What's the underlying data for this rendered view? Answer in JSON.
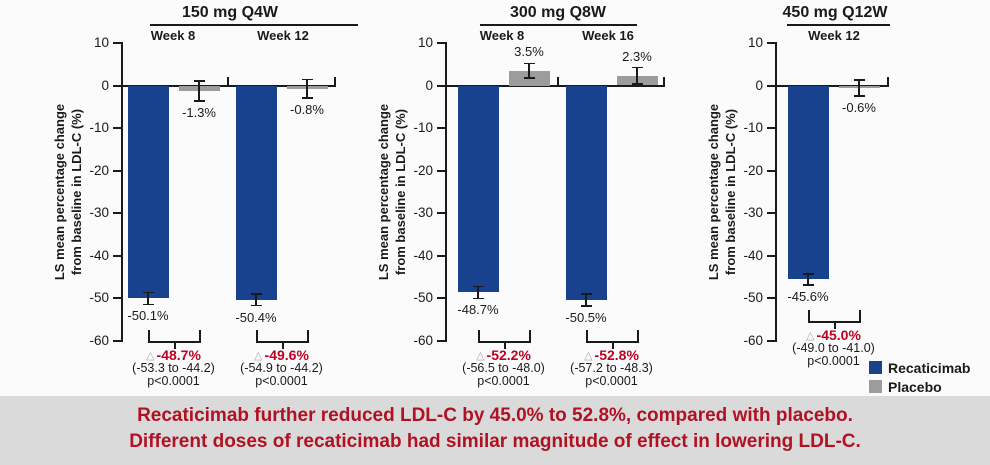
{
  "colors": {
    "recaticimab": "#18428e",
    "placebo": "#9c9c9c",
    "axis": "#1a1a1a",
    "delta_red": "#c00021",
    "triangle_gray": "#a9a9a9",
    "caption_red": "#b01224",
    "caption_bg": "#dadada",
    "chart_bg": "#fbfbfb"
  },
  "legend": {
    "items": [
      {
        "name": "recaticimab",
        "label": "Recaticimab",
        "color": "#18428e"
      },
      {
        "name": "placebo",
        "label": "Placebo",
        "color": "#9c9c9c"
      }
    ]
  },
  "caption": {
    "line1": "Recaticimab further reduced LDL-C by 45.0% to 52.8%, compared with placebo.",
    "line2": "Different doses of recaticimab had similar magnitude of effect in lowering LDL-C."
  },
  "chart_data": {
    "type": "bar",
    "ylabel": "LS mean percentage change\nfrom baseline in LDL-C (%)",
    "ylim": [
      -60,
      10
    ],
    "yticks": [
      10,
      0,
      -10,
      -20,
      -30,
      -40,
      -50,
      -60
    ],
    "grid": false,
    "legend_position": "bottom-right",
    "series_names": [
      "Recaticimab",
      "Placebo"
    ],
    "delta_symbol": "△",
    "panels": [
      {
        "title": "150 mg Q4W",
        "groups": [
          {
            "week": "Week 8",
            "recaticimab": {
              "value": -50.1,
              "err": 1.4,
              "label": "-50.1%"
            },
            "placebo": {
              "value": -1.3,
              "err": 2.4,
              "label": "-1.3%"
            },
            "delta": {
              "label": "-48.7%",
              "ci": "(-53.3 to -44.2)",
              "p": "p<0.0001"
            }
          },
          {
            "week": "Week 12",
            "recaticimab": {
              "value": -50.4,
              "err": 1.4,
              "label": "-50.4%"
            },
            "placebo": {
              "value": -0.8,
              "err": 2.2,
              "label": "-0.8%"
            },
            "delta": {
              "label": "-49.6%",
              "ci": "(-54.9 to -44.2)",
              "p": "p<0.0001"
            }
          }
        ]
      },
      {
        "title": "300 mg Q8W",
        "groups": [
          {
            "week": "Week 8",
            "recaticimab": {
              "value": -48.7,
              "err": 1.4,
              "label": "-48.7%"
            },
            "placebo": {
              "value": 3.5,
              "err": 1.7,
              "label": "3.5%"
            },
            "delta": {
              "label": "-52.2%",
              "ci": "(-56.5 to -48.0)",
              "p": "p<0.0001"
            }
          },
          {
            "week": "Week 16",
            "recaticimab": {
              "value": -50.5,
              "err": 1.4,
              "label": "-50.5%"
            },
            "placebo": {
              "value": 2.3,
              "err": 1.9,
              "label": "2.3%"
            },
            "delta": {
              "label": "-52.8%",
              "ci": "(-57.2 to -48.3)",
              "p": "p<0.0001"
            }
          }
        ]
      },
      {
        "title": "450 mg Q12W",
        "groups": [
          {
            "week": "Week 12",
            "recaticimab": {
              "value": -45.6,
              "err": 1.3,
              "label": "-45.6%"
            },
            "placebo": {
              "value": -0.6,
              "err": 1.9,
              "label": "-0.6%"
            },
            "delta": {
              "label": "-45.0%",
              "ci": "(-49.0 to -41.0)",
              "p": "p<0.0001"
            }
          }
        ]
      }
    ]
  }
}
